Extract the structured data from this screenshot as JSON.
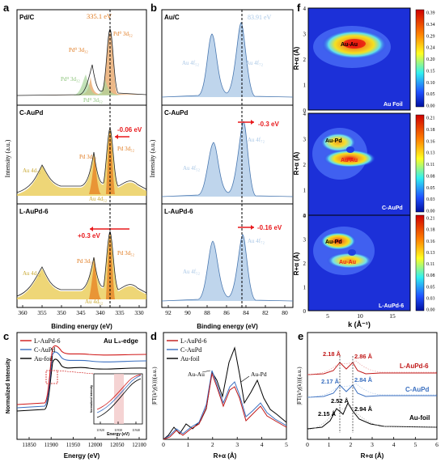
{
  "panels": {
    "a": {
      "letter": "a",
      "xlabel": "Binding energy (eV)",
      "ylabel": "Intensity (a.u.)",
      "xticks": [
        "360",
        "355",
        "350",
        "345",
        "340",
        "335",
        "330"
      ],
      "sub1": {
        "name": "Pd/C",
        "peak": "335.1 eV",
        "l1": "Pd⁰ 3d₅₂",
        "l2": "Pd⁰ 3d₃₂",
        "l3": "Pdᴵᴵ 3d₃₂",
        "l4": "Pdᴵᴵ 3d₅₂"
      },
      "sub2": {
        "name": "C-AuPd",
        "shift": "-0.06 eV",
        "l1": "Au 4d₃₂",
        "l2": "Pd 3d₃₂",
        "l3": "Pd 3d₅₂",
        "l4": "Au 4d₅₂"
      },
      "sub3": {
        "name": "L-AuPd-6",
        "shift": "+0.3 eV",
        "l1": "Au 4d₃₂",
        "l2": "Pd 3d₃₂",
        "l3": "Pd 3d₅₂",
        "l4": "Au 4d₅₂"
      }
    },
    "b": {
      "letter": "b",
      "xlabel": "Binding energy (eV)",
      "ylabel": "Intensity (a.u.)",
      "xticks": [
        "92",
        "90",
        "88",
        "86",
        "84",
        "82",
        "80"
      ],
      "sub1": {
        "name": "Au/C",
        "peak": "83.91 eV",
        "l1": "Au 4f₅₂",
        "l2": "Au 4f₇₂"
      },
      "sub2": {
        "name": "C-AuPd",
        "shift": "-0.3 eV",
        "l1": "Au 4f₅₂",
        "l2": "Au 4f₇₂"
      },
      "sub3": {
        "name": "L-AuPd-6",
        "shift": "-0.16 eV",
        "l1": "Au 4f₅₂",
        "l2": "Au 4f₇₂"
      }
    },
    "c": {
      "letter": "c",
      "xlabel": "Energy (eV)",
      "ylabel": "Normalized Intensity",
      "edge": "Au L₃-edge",
      "legend": [
        "L-AuPd-6",
        "C-AuPd",
        "Au-foil"
      ],
      "xticks": [
        "11850",
        "11900",
        "11950",
        "12000",
        "12050",
        "12100"
      ],
      "inset_xlabel": "Energy (eV)",
      "inset_ylabel": "Normalized Intensity",
      "inset_xticks": [
        "11920",
        "11930",
        "11940"
      ]
    },
    "d": {
      "letter": "d",
      "xlabel": "R+α (Å)",
      "ylabel": "|FT(k²χ(k))|(a.u.)",
      "legend": [
        "L-AuPd-6",
        "C-AuPd",
        "Au-foil"
      ],
      "ann1": "Au-Au",
      "ann2": "Au-Pd",
      "xticks": [
        "0",
        "1",
        "2",
        "3",
        "4",
        "5"
      ]
    },
    "e": {
      "letter": "e",
      "xlabel": "R+α (Å)",
      "ylabel": "|FT(k²χ(k))|(a.u.)",
      "xticks": [
        "0",
        "1",
        "2",
        "3",
        "4",
        "5",
        "6"
      ],
      "s1": {
        "name": "L-AuPd-6",
        "p1": "2.18 Å",
        "p2": "2.86 Å"
      },
      "s2": {
        "name": "C-AuPd",
        "p1": "2.17 Å",
        "p2": "2.84 Å"
      },
      "s3": {
        "name": "Au-foil",
        "p1": "2.15 Å",
        "p2": "2.52 Å",
        "p3": "2.94 Å"
      }
    },
    "f": {
      "letter": "f",
      "xlabel": "k (Å⁻¹)",
      "ylabel": "R+α (Å)",
      "xticks": [
        "5",
        "10",
        "15"
      ],
      "yticks": [
        "0",
        "1",
        "2",
        "3",
        "4"
      ],
      "m1": {
        "name": "Au Foil",
        "bond": "Au-Au",
        "cbar": [
          "0.39",
          "0.34",
          "0.29",
          "0.24",
          "0.20",
          "0.15",
          "0.10",
          "0.05",
          "0.00"
        ]
      },
      "m2": {
        "name": "C-AuPd",
        "bond1": "Au-Pd",
        "bond2": "Au-Au",
        "cbar": [
          "0.21",
          "0.18",
          "0.16",
          "0.13",
          "0.11",
          "0.08",
          "0.05",
          "0.03",
          "0.00"
        ]
      },
      "m3": {
        "name": "L-AuPd-6",
        "bond1": "Au-Pd",
        "bond2": "Au-Au",
        "cbar": [
          "0.21",
          "0.18",
          "0.16",
          "0.13",
          "0.11",
          "0.08",
          "0.05",
          "0.03",
          "0.00"
        ]
      }
    }
  },
  "colors": {
    "orange": "#e07a1f",
    "red": "#e8191c",
    "green": "#8cc47a",
    "blue": "#5b8fd0",
    "lightblue": "#a9c7e6",
    "yellow": "#e8c84a"
  }
}
